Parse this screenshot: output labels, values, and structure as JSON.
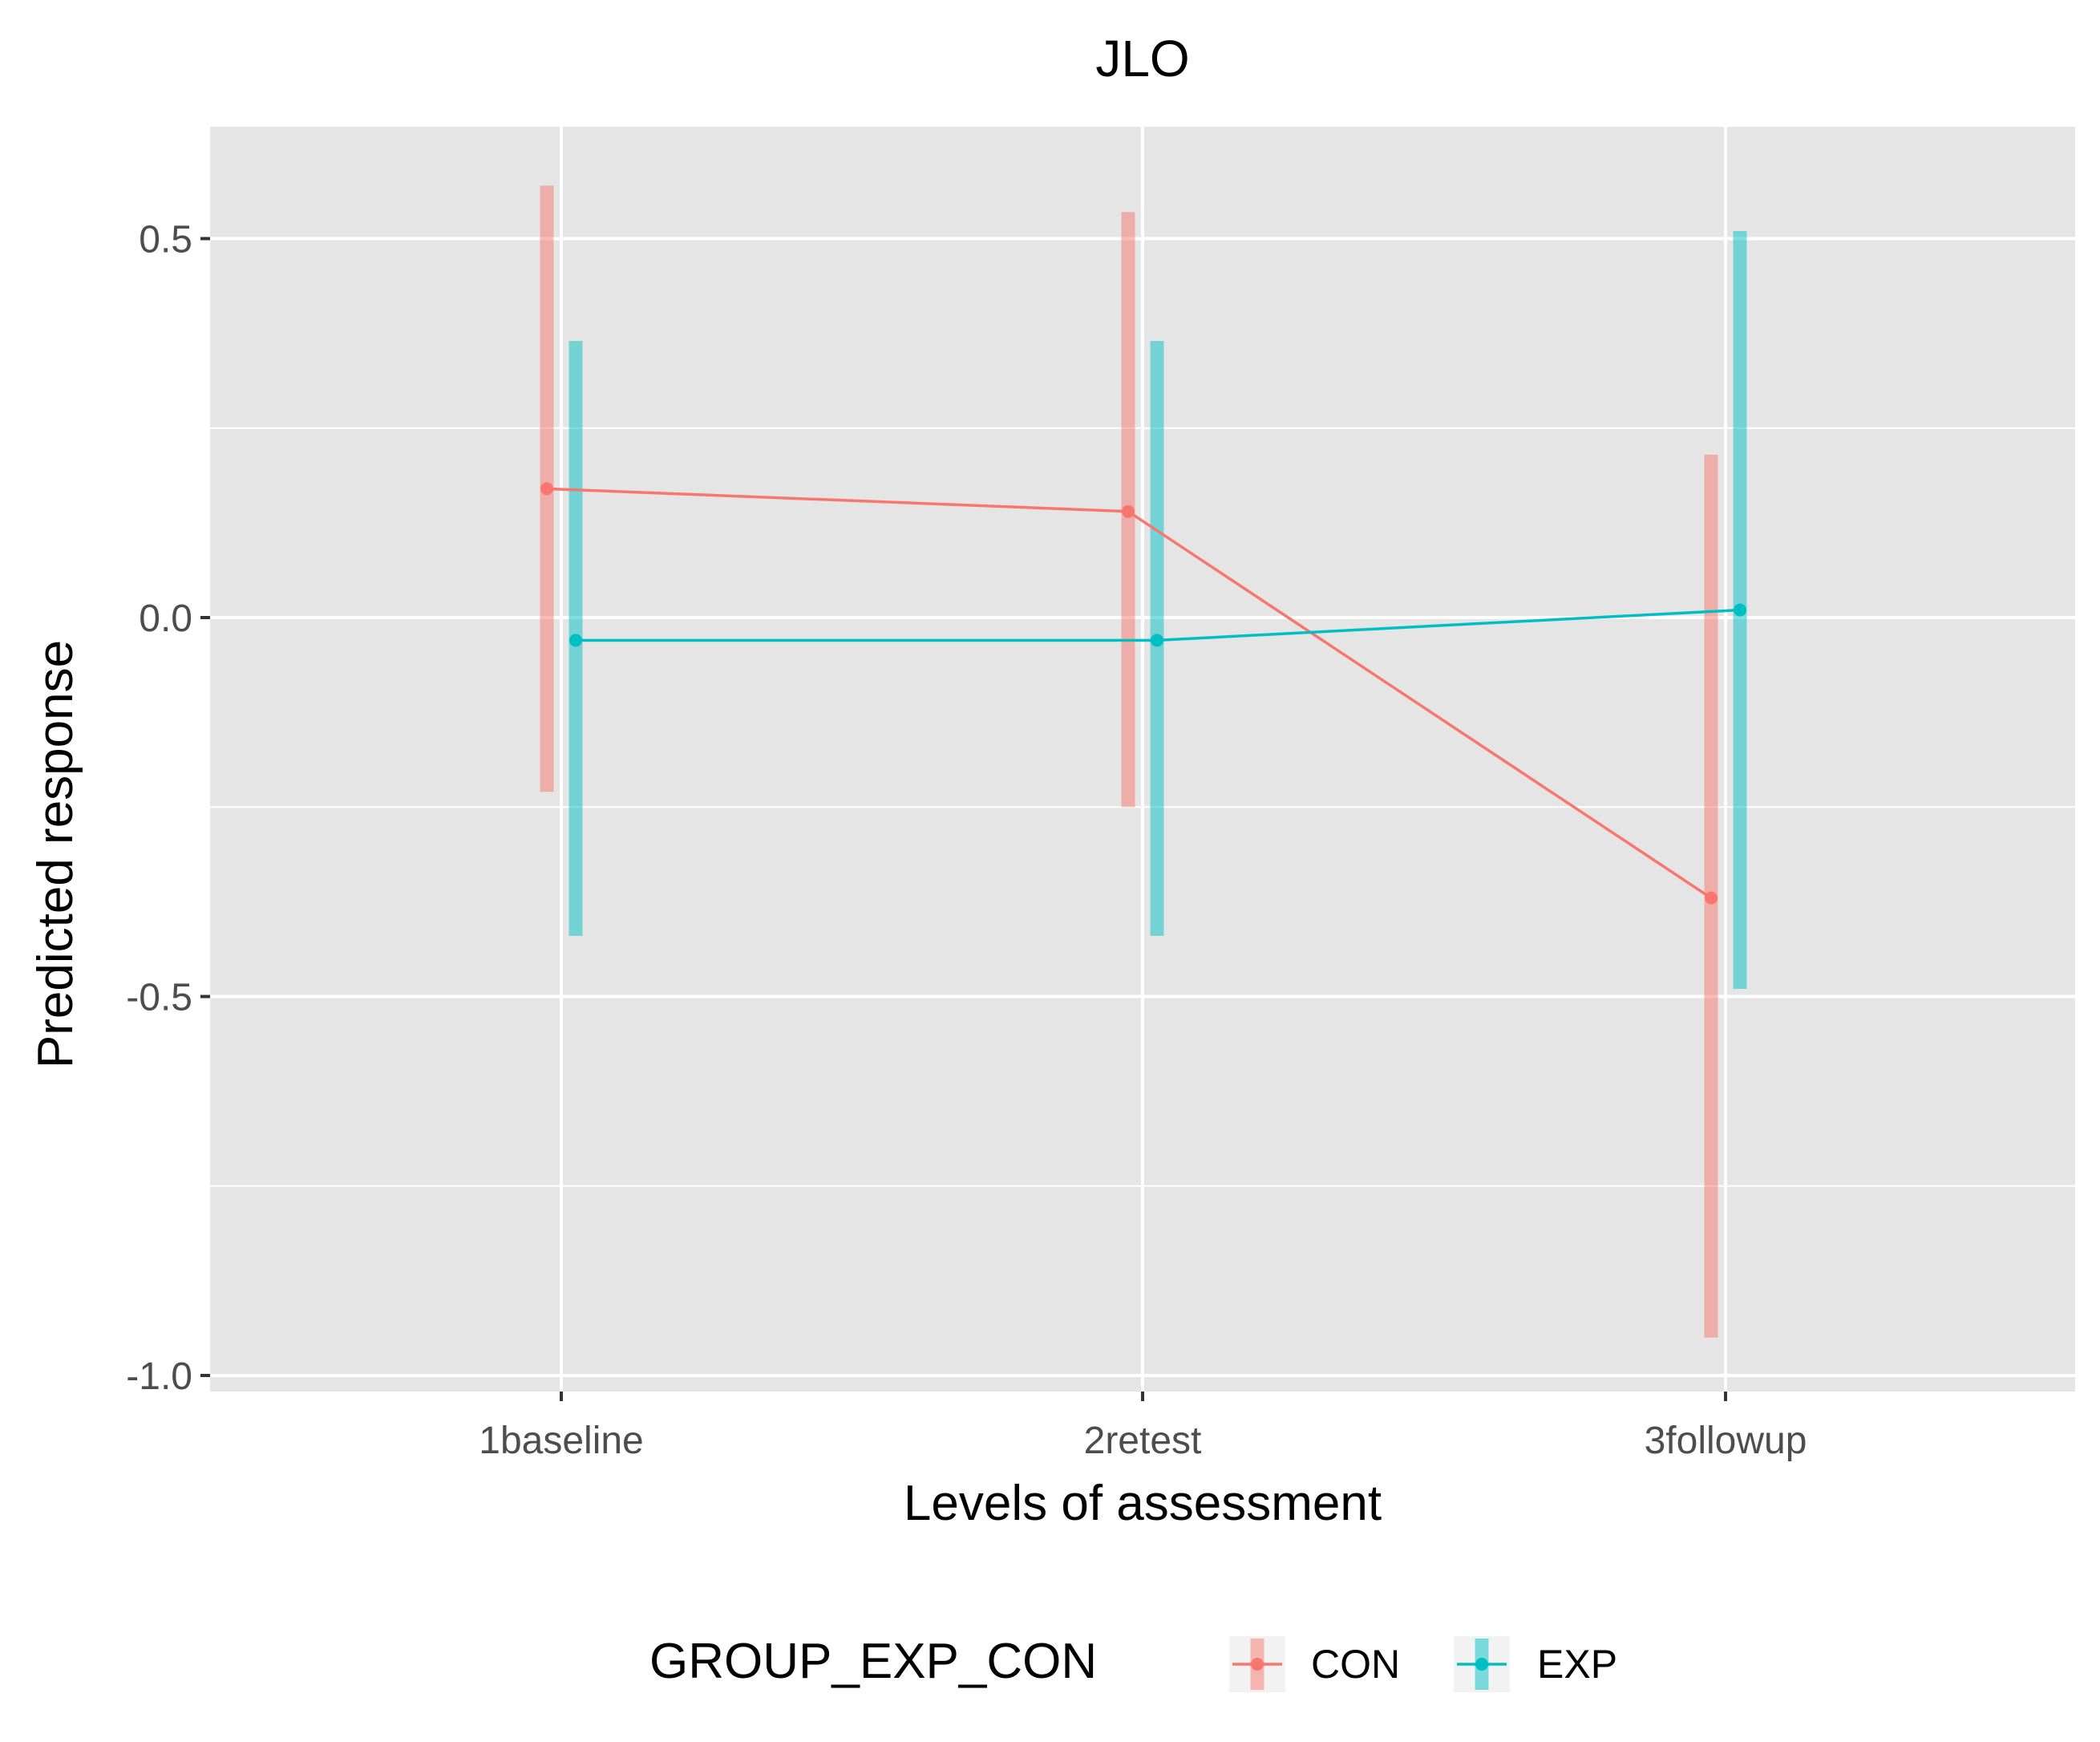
{
  "chart_data": {
    "type": "line",
    "title": "JLO",
    "xlabel": "Levels of assessment",
    "ylabel": "Predicted response",
    "categories": [
      "1baseline",
      "2retest",
      "3followup"
    ],
    "ylim": [
      -1.05,
      0.65
    ],
    "y_ticks": [
      0.5,
      0.0,
      -0.5,
      -1.0
    ],
    "y_tick_labels": [
      "0.5",
      "0.0",
      "-0.5",
      "-1.0"
    ],
    "grid": true,
    "legend": {
      "title": "GROUP_EXP_CON",
      "position": "bottom"
    },
    "series": [
      {
        "name": "CON",
        "color": "#F8766D",
        "values": [
          0.17,
          0.14,
          -0.37
        ],
        "lower": [
          -0.23,
          -0.25,
          -0.95
        ],
        "upper": [
          0.57,
          0.535,
          0.215
        ]
      },
      {
        "name": "EXP",
        "color": "#00BFC4",
        "values": [
          -0.03,
          -0.03,
          0.01
        ],
        "lower": [
          -0.42,
          -0.42,
          -0.49
        ],
        "upper": [
          0.365,
          0.365,
          0.51
        ]
      }
    ]
  }
}
